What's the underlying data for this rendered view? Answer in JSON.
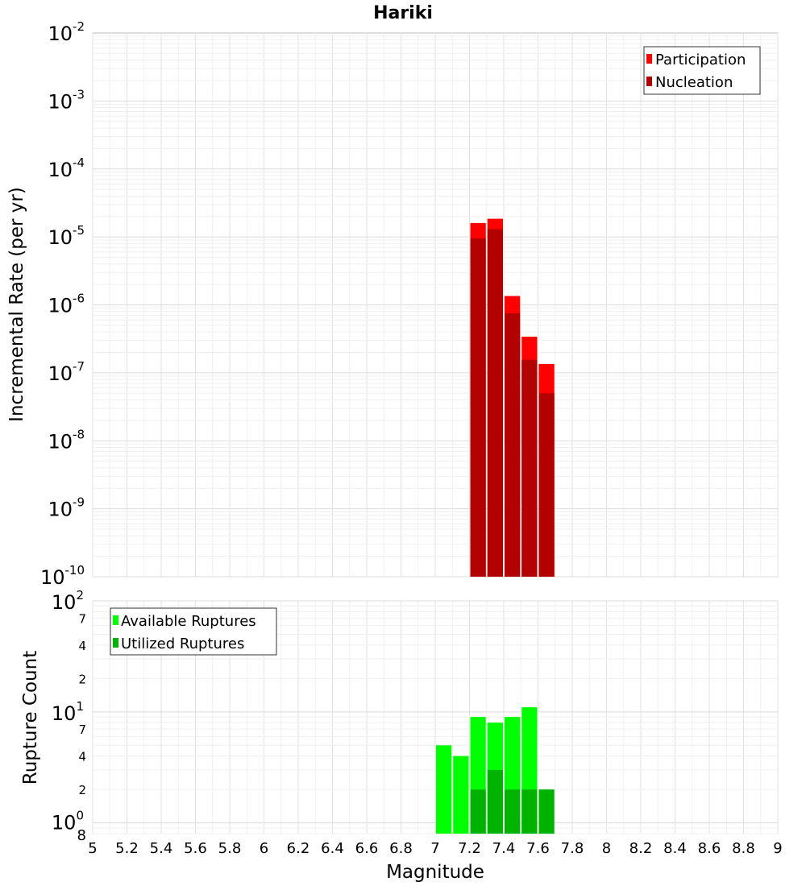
{
  "chart_data": [
    {
      "type": "bar",
      "title": "Hariki",
      "ylabel": "Incremental Rate (per yr)",
      "yscale": "log",
      "ylim": [
        1e-10,
        0.01
      ],
      "xlim": [
        5,
        9
      ],
      "bin_width": 0.1,
      "x": [
        7.25,
        7.35,
        7.45,
        7.55,
        7.65
      ],
      "series": [
        {
          "name": "Participation",
          "color": "#ff0000",
          "values": [
            1.6e-05,
            1.85e-05,
            1.35e-06,
            3.4e-07,
            1.35e-07
          ]
        },
        {
          "name": "Nucleation",
          "color": "#b30000",
          "values": [
            9.5e-06,
            1.3e-05,
            7.5e-07,
            1.55e-07,
            5e-08
          ]
        }
      ],
      "y_tick_bases": [
        "10",
        "10",
        "10",
        "10",
        "10",
        "10",
        "10",
        "10",
        "10"
      ],
      "y_tick_exponents": [
        "-10",
        "-9",
        "-8",
        "-7",
        "-6",
        "-5",
        "-4",
        "-3",
        "-2"
      ],
      "legend_position": "top-right",
      "grid": true
    },
    {
      "type": "bar",
      "xlabel": "Magnitude",
      "ylabel": "Rupture Count",
      "yscale": "log",
      "ylim": [
        0.8,
        100
      ],
      "xlim": [
        5,
        9
      ],
      "bin_width": 0.1,
      "x_ticks": [
        "5",
        "5.2",
        "5.4",
        "5.6",
        "5.8",
        "6",
        "6.2",
        "6.4",
        "6.6",
        "6.8",
        "7",
        "7.2",
        "7.4",
        "7.6",
        "7.8",
        "8",
        "8.2",
        "8.4",
        "8.6",
        "8.8",
        "9"
      ],
      "series": [
        {
          "name": "Available Ruptures",
          "color": "#00ff00",
          "x": [
            7.05,
            7.15,
            7.25,
            7.35,
            7.45,
            7.55
          ],
          "values": [
            5,
            4,
            9,
            8,
            9,
            11
          ]
        },
        {
          "name": "Utilized Ruptures",
          "color": "#00b300",
          "x": [
            7.25,
            7.35,
            7.45,
            7.55,
            7.65
          ],
          "values": [
            2,
            3,
            2,
            2,
            2
          ]
        }
      ],
      "y_minor_labels": [
        "8",
        "2",
        "4",
        "7",
        "2",
        "4",
        "7"
      ],
      "y_major_bases": [
        "10",
        "10",
        "10"
      ],
      "y_major_exponents": [
        "0",
        "1",
        "2"
      ],
      "legend_position": "top-left",
      "grid": true
    }
  ]
}
